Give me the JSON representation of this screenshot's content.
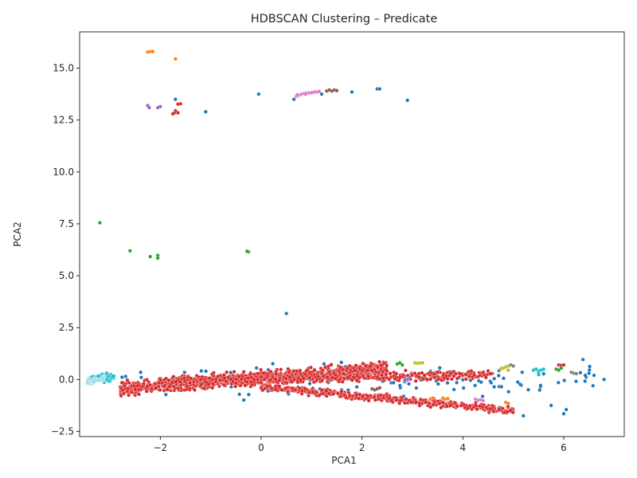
{
  "chart_data": {
    "type": "scatter",
    "title": "HDBSCAN Clustering – Predicate",
    "xlabel": "PCA1",
    "ylabel": "PCA2",
    "xlim": [
      -3.6,
      7.2
    ],
    "ylim": [
      -2.75,
      16.75
    ],
    "xticks": [
      -2,
      0,
      2,
      4,
      6
    ],
    "yticks": [
      -2.5,
      0.0,
      2.5,
      5.0,
      7.5,
      10.0,
      12.5,
      15.0
    ],
    "xtick_labels": [
      "−2",
      "0",
      "2",
      "4",
      "6"
    ],
    "ytick_labels": [
      "−2.5",
      "0.0",
      "2.5",
      "5.0",
      "7.5",
      "10.0",
      "12.5",
      "15.0"
    ],
    "grid": false,
    "legend": false,
    "colors": {
      "red": "#d62728",
      "blue": "#1f77b4",
      "orange": "#ff7f0e",
      "green": "#2ca02c",
      "purple": "#9467bd",
      "brown": "#8c564b",
      "pink": "#e377c2",
      "gray": "#7f7f7f",
      "olive": "#bcbd22",
      "cyan": "#17becf",
      "lightcyan": "#9edae5"
    },
    "bands": [
      {
        "color": "red",
        "x": [
          -2.8,
          2.5
        ],
        "y_at_start": -0.45,
        "y_at_end": 0.55,
        "spread": 0.55,
        "n": 900
      },
      {
        "color": "red",
        "x": [
          -1.8,
          4.6
        ],
        "y_at_start": -0.1,
        "y_at_end": 0.25,
        "spread": 0.35,
        "n": 450
      },
      {
        "color": "red",
        "x": [
          0.0,
          5.0
        ],
        "y_at_start": -0.35,
        "y_at_end": -1.5,
        "spread": 0.28,
        "n": 450
      },
      {
        "color": "blue",
        "x": [
          -2.8,
          6.6
        ],
        "y_at_start": -0.2,
        "y_at_end": 0.1,
        "spread": 1.3,
        "n": 130
      },
      {
        "color": "cyan",
        "x": [
          -3.4,
          -2.9
        ],
        "y_at_start": 0.0,
        "y_at_end": 0.15,
        "spread": 0.35,
        "n": 60
      },
      {
        "color": "lightcyan",
        "x": [
          -3.45,
          -3.1
        ],
        "y_at_start": -0.1,
        "y_at_end": 0.1,
        "spread": 0.3,
        "n": 30
      }
    ],
    "points": [
      {
        "x": -2.2,
        "y": 15.8,
        "color": "orange"
      },
      {
        "x": -2.15,
        "y": 15.8,
        "color": "orange"
      },
      {
        "x": -2.25,
        "y": 15.78,
        "color": "orange"
      },
      {
        "x": -1.7,
        "y": 15.45,
        "color": "orange"
      },
      {
        "x": -2.25,
        "y": 13.2,
        "color": "purple"
      },
      {
        "x": -2.22,
        "y": 13.1,
        "color": "purple"
      },
      {
        "x": -2.05,
        "y": 13.1,
        "color": "purple"
      },
      {
        "x": -2.0,
        "y": 13.15,
        "color": "purple"
      },
      {
        "x": -1.7,
        "y": 13.5,
        "color": "blue"
      },
      {
        "x": -1.6,
        "y": 13.28,
        "color": "red"
      },
      {
        "x": -1.65,
        "y": 13.27,
        "color": "red"
      },
      {
        "x": -1.7,
        "y": 12.95,
        "color": "red"
      },
      {
        "x": -1.72,
        "y": 12.85,
        "color": "red"
      },
      {
        "x": -1.65,
        "y": 12.85,
        "color": "red"
      },
      {
        "x": -1.75,
        "y": 12.8,
        "color": "red"
      },
      {
        "x": -1.1,
        "y": 12.9,
        "color": "blue"
      },
      {
        "x": -0.05,
        "y": 13.75,
        "color": "blue"
      },
      {
        "x": 0.65,
        "y": 13.5,
        "color": "blue"
      },
      {
        "x": 0.7,
        "y": 13.65,
        "color": "pink"
      },
      {
        "x": 0.75,
        "y": 13.7,
        "color": "pink"
      },
      {
        "x": 0.8,
        "y": 13.75,
        "color": "pink"
      },
      {
        "x": 0.85,
        "y": 13.78,
        "color": "pink"
      },
      {
        "x": 0.9,
        "y": 13.8,
        "color": "pink"
      },
      {
        "x": 0.95,
        "y": 13.8,
        "color": "pink"
      },
      {
        "x": 1.0,
        "y": 13.82,
        "color": "pink"
      },
      {
        "x": 1.05,
        "y": 13.85,
        "color": "pink"
      },
      {
        "x": 1.1,
        "y": 13.85,
        "color": "pink"
      },
      {
        "x": 1.15,
        "y": 13.88,
        "color": "pink"
      },
      {
        "x": 0.72,
        "y": 13.72,
        "color": "pink"
      },
      {
        "x": 0.88,
        "y": 13.74,
        "color": "pink"
      },
      {
        "x": 1.2,
        "y": 13.75,
        "color": "blue"
      },
      {
        "x": 1.3,
        "y": 13.9,
        "color": "brown"
      },
      {
        "x": 1.35,
        "y": 13.95,
        "color": "brown"
      },
      {
        "x": 1.4,
        "y": 13.9,
        "color": "brown"
      },
      {
        "x": 1.45,
        "y": 13.95,
        "color": "brown"
      },
      {
        "x": 1.5,
        "y": 13.92,
        "color": "brown"
      },
      {
        "x": 1.8,
        "y": 13.85,
        "color": "blue"
      },
      {
        "x": 2.3,
        "y": 14.0,
        "color": "blue"
      },
      {
        "x": 2.35,
        "y": 14.0,
        "color": "blue"
      },
      {
        "x": 2.9,
        "y": 13.45,
        "color": "blue"
      },
      {
        "x": -3.2,
        "y": 7.55,
        "color": "green"
      },
      {
        "x": -2.6,
        "y": 6.2,
        "color": "green"
      },
      {
        "x": -2.2,
        "y": 5.92,
        "color": "green"
      },
      {
        "x": -2.05,
        "y": 5.98,
        "color": "green"
      },
      {
        "x": -2.05,
        "y": 5.85,
        "color": "green"
      },
      {
        "x": -0.25,
        "y": 6.15,
        "color": "green"
      },
      {
        "x": -0.28,
        "y": 6.18,
        "color": "green"
      },
      {
        "x": 0.5,
        "y": 3.18,
        "color": "blue"
      },
      {
        "x": 2.7,
        "y": 0.75,
        "color": "green"
      },
      {
        "x": 2.75,
        "y": 0.8,
        "color": "green"
      },
      {
        "x": 2.8,
        "y": 0.7,
        "color": "green"
      },
      {
        "x": 3.05,
        "y": 0.8,
        "color": "olive"
      },
      {
        "x": 3.1,
        "y": 0.78,
        "color": "olive"
      },
      {
        "x": 3.15,
        "y": 0.8,
        "color": "olive"
      },
      {
        "x": 3.2,
        "y": 0.8,
        "color": "olive"
      },
      {
        "x": 4.75,
        "y": 0.5,
        "color": "olive"
      },
      {
        "x": 4.8,
        "y": 0.55,
        "color": "olive"
      },
      {
        "x": 4.85,
        "y": 0.6,
        "color": "olive"
      },
      {
        "x": 4.9,
        "y": 0.65,
        "color": "olive"
      },
      {
        "x": 4.95,
        "y": 0.7,
        "color": "gray"
      },
      {
        "x": 5.0,
        "y": 0.65,
        "color": "gray"
      },
      {
        "x": 4.9,
        "y": 0.45,
        "color": "olive"
      },
      {
        "x": 5.4,
        "y": 0.45,
        "color": "cyan"
      },
      {
        "x": 5.45,
        "y": 0.5,
        "color": "cyan"
      },
      {
        "x": 5.5,
        "y": 0.4,
        "color": "cyan"
      },
      {
        "x": 5.55,
        "y": 0.45,
        "color": "cyan"
      },
      {
        "x": 5.6,
        "y": 0.5,
        "color": "cyan"
      },
      {
        "x": 5.5,
        "y": 0.3,
        "color": "cyan"
      },
      {
        "x": 5.9,
        "y": 0.7,
        "color": "red"
      },
      {
        "x": 5.95,
        "y": 0.68,
        "color": "red"
      },
      {
        "x": 6.0,
        "y": 0.7,
        "color": "red"
      },
      {
        "x": 5.85,
        "y": 0.5,
        "color": "green"
      },
      {
        "x": 5.9,
        "y": 0.45,
        "color": "green"
      },
      {
        "x": 5.95,
        "y": 0.55,
        "color": "green"
      },
      {
        "x": 6.15,
        "y": 0.35,
        "color": "gray"
      },
      {
        "x": 6.2,
        "y": 0.3,
        "color": "gray"
      },
      {
        "x": 6.25,
        "y": 0.28,
        "color": "gray"
      },
      {
        "x": 6.8,
        "y": 0.0,
        "color": "blue"
      },
      {
        "x": 6.6,
        "y": 0.2,
        "color": "blue"
      },
      {
        "x": 6.5,
        "y": 0.3,
        "color": "blue"
      },
      {
        "x": 6.05,
        "y": -1.45,
        "color": "blue"
      },
      {
        "x": 6.0,
        "y": -1.65,
        "color": "blue"
      },
      {
        "x": 5.75,
        "y": -1.25,
        "color": "blue"
      },
      {
        "x": 5.2,
        "y": -1.75,
        "color": "blue"
      },
      {
        "x": 3.35,
        "y": -0.95,
        "color": "orange"
      },
      {
        "x": 3.4,
        "y": -0.9,
        "color": "orange"
      },
      {
        "x": 3.6,
        "y": -0.9,
        "color": "orange"
      },
      {
        "x": 3.65,
        "y": -0.95,
        "color": "orange"
      },
      {
        "x": 3.7,
        "y": -0.92,
        "color": "orange"
      },
      {
        "x": 4.85,
        "y": -1.1,
        "color": "orange"
      },
      {
        "x": 4.9,
        "y": -1.15,
        "color": "orange"
      },
      {
        "x": 4.25,
        "y": -0.95,
        "color": "pink"
      },
      {
        "x": 4.3,
        "y": -1.0,
        "color": "pink"
      },
      {
        "x": 4.35,
        "y": -0.98,
        "color": "pink"
      },
      {
        "x": 4.4,
        "y": -1.02,
        "color": "pink"
      },
      {
        "x": 2.2,
        "y": -0.45,
        "color": "brown"
      },
      {
        "x": 2.25,
        "y": -0.5,
        "color": "brown"
      },
      {
        "x": 2.3,
        "y": -0.45,
        "color": "brown"
      },
      {
        "x": 2.35,
        "y": -0.4,
        "color": "brown"
      },
      {
        "x": 2.85,
        "y": 0.05,
        "color": "purple"
      },
      {
        "x": 2.9,
        "y": 0.0,
        "color": "purple"
      },
      {
        "x": 2.85,
        "y": -0.05,
        "color": "purple"
      },
      {
        "x": 2.95,
        "y": 0.1,
        "color": "purple"
      }
    ]
  }
}
